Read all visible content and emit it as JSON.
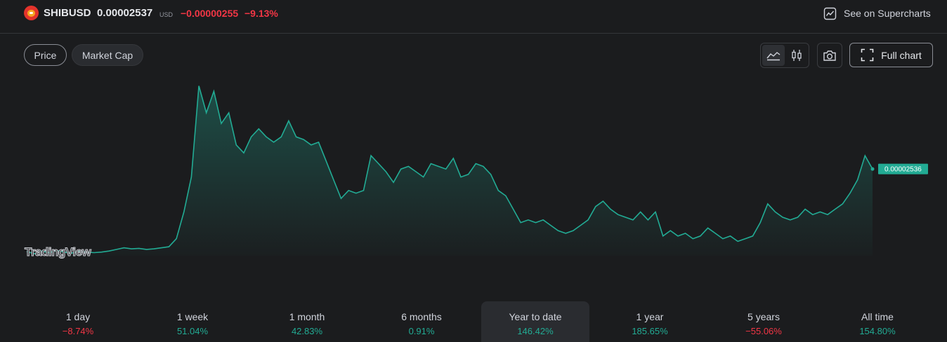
{
  "header": {
    "symbol": "SHIBUSD",
    "price": "0.00002537",
    "currency": "USD",
    "change": "−0.00000255",
    "change_percent": "−9.13%",
    "supercharts_label": "See on Supercharts"
  },
  "view_tabs": {
    "price_label": "Price",
    "market_cap_label": "Market Cap"
  },
  "toolbar": {
    "full_chart_label": "Full chart",
    "icons": [
      "area-chart-icon",
      "candlestick-icon",
      "camera-icon",
      "fullscreen-icon",
      "chart-icon"
    ]
  },
  "watermark": "TradingView",
  "colors": {
    "line": "#22ab94",
    "negative": "#f23645",
    "positive": "#22ab94",
    "price_tag_bg": "#22ab94"
  },
  "chart_data": {
    "type": "area",
    "last_price_label": "0.00002536",
    "ylim": [
      8e-06,
      4.2e-05
    ],
    "values": [
      1.01e-05,
      9.7e-06,
      1.02e-05,
      9.9e-06,
      1.03e-05,
      1e-05,
      9.8e-06,
      1.01e-05,
      1e-05,
      9.9e-06,
      1e-05,
      1.02e-05,
      1.05e-05,
      1.08e-05,
      1.06e-05,
      1.07e-05,
      1.05e-05,
      1.06e-05,
      1.08e-05,
      1.1e-05,
      1.25e-05,
      1.75e-05,
      2.4e-05,
      4.1e-05,
      3.6e-05,
      4e-05,
      3.4e-05,
      3.6e-05,
      3e-05,
      2.85e-05,
      3.15e-05,
      3.3e-05,
      3.15e-05,
      3.05e-05,
      3.15e-05,
      3.45e-05,
      3.15e-05,
      3.1e-05,
      3e-05,
      3.05e-05,
      2.7e-05,
      2.35e-05,
      2e-05,
      2.15e-05,
      2.1e-05,
      2.15e-05,
      2.8e-05,
      2.65e-05,
      2.5e-05,
      2.3e-05,
      2.55e-05,
      2.6e-05,
      2.5e-05,
      2.4e-05,
      2.65e-05,
      2.6e-05,
      2.55e-05,
      2.75e-05,
      2.4e-05,
      2.45e-05,
      2.65e-05,
      2.6e-05,
      2.45e-05,
      2.15e-05,
      2.05e-05,
      1.8e-05,
      1.55e-05,
      1.6e-05,
      1.55e-05,
      1.6e-05,
      1.5e-05,
      1.4e-05,
      1.35e-05,
      1.4e-05,
      1.5e-05,
      1.6e-05,
      1.85e-05,
      1.95e-05,
      1.8e-05,
      1.7e-05,
      1.65e-05,
      1.6e-05,
      1.75e-05,
      1.6e-05,
      1.75e-05,
      1.3e-05,
      1.4e-05,
      1.3e-05,
      1.35e-05,
      1.25e-05,
      1.3e-05,
      1.45e-05,
      1.35e-05,
      1.25e-05,
      1.3e-05,
      1.2e-05,
      1.25e-05,
      1.3e-05,
      1.55e-05,
      1.9e-05,
      1.75e-05,
      1.65e-05,
      1.6e-05,
      1.65e-05,
      1.8e-05,
      1.7e-05,
      1.75e-05,
      1.7e-05,
      1.8e-05,
      1.9e-05,
      2.1e-05,
      2.35e-05,
      2.8e-05,
      2.55e-05
    ]
  },
  "ranges": [
    {
      "label": "1 day",
      "value": "−8.74%",
      "dir": "down"
    },
    {
      "label": "1 week",
      "value": "51.04%",
      "dir": "up"
    },
    {
      "label": "1 month",
      "value": "42.83%",
      "dir": "up"
    },
    {
      "label": "6 months",
      "value": "0.91%",
      "dir": "up"
    },
    {
      "label": "Year to date",
      "value": "146.42%",
      "dir": "up",
      "active": true
    },
    {
      "label": "1 year",
      "value": "185.65%",
      "dir": "up"
    },
    {
      "label": "5 years",
      "value": "−55.06%",
      "dir": "down"
    },
    {
      "label": "All time",
      "value": "154.80%",
      "dir": "up"
    }
  ]
}
